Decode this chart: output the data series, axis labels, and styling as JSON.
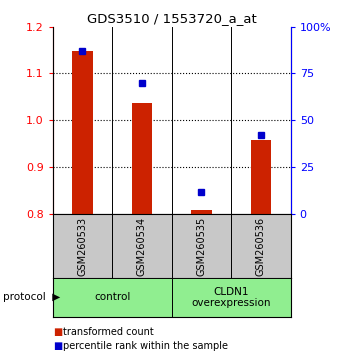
{
  "title": "GDS3510 / 1553720_a_at",
  "samples": [
    "GSM260533",
    "GSM260534",
    "GSM260535",
    "GSM260536"
  ],
  "red_values": [
    1.148,
    1.038,
    0.808,
    0.958
  ],
  "blue_values": [
    87,
    70,
    12,
    42
  ],
  "ylim_left": [
    0.8,
    1.2
  ],
  "ylim_right": [
    0,
    100
  ],
  "yticks_left": [
    0.8,
    0.9,
    1.0,
    1.1,
    1.2
  ],
  "yticks_right": [
    0,
    25,
    50,
    75,
    100
  ],
  "ytick_labels_right": [
    "0",
    "25",
    "50",
    "75",
    "100%"
  ],
  "bar_color": "#CC2200",
  "dot_color": "#0000CC",
  "bar_width": 0.35,
  "background_sample": "#C8C8C8",
  "group_color": "#90EE90",
  "legend_red_label": "transformed count",
  "legend_blue_label": "percentile rank within the sample",
  "protocol_label": "protocol",
  "group_ranges": [
    [
      0,
      1,
      "control"
    ],
    [
      2,
      3,
      "CLDN1\noverexpression"
    ]
  ]
}
